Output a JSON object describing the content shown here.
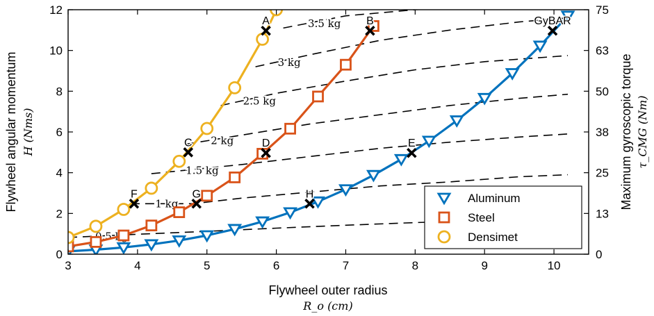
{
  "chart_data": {
    "type": "line",
    "xlabel": "Flywheel outer radius",
    "xlabel_symbol": "R_o (cm)",
    "ylabel": "Flywheel angular momentum",
    "ylabel_symbol": "H (Nms)",
    "y2label": "Maximum gyroscopic torque",
    "y2label_symbol": "τ_CMG (Nm)",
    "xlim": [
      3,
      10.5
    ],
    "ylim": [
      0,
      12
    ],
    "x_ticks": [
      "3",
      "4",
      "5",
      "6",
      "7",
      "8",
      "9",
      "10"
    ],
    "y_ticks": [
      "0",
      "2",
      "4",
      "6",
      "8",
      "10",
      "12"
    ],
    "y2_ticks": [
      "0",
      "13",
      "25",
      "38",
      "50",
      "63",
      "75"
    ],
    "grid": false,
    "legend_position": "bottom-right",
    "series": [
      {
        "name": "Aluminum",
        "color": "#0072BD",
        "marker": "triangle-down",
        "x": [
          3.0,
          3.4,
          3.8,
          4.2,
          4.6,
          5.0,
          5.4,
          5.8,
          6.2,
          6.6,
          7.0,
          7.4,
          7.8,
          8.2,
          8.6,
          9.0,
          9.4,
          9.8,
          10.2
        ],
        "y": [
          0.14,
          0.22,
          0.33,
          0.48,
          0.67,
          0.92,
          1.23,
          1.6,
          2.05,
          2.58,
          3.18,
          3.88,
          4.66,
          5.56,
          6.56,
          7.66,
          8.88,
          10.23,
          11.7
        ]
      },
      {
        "name": "Steel",
        "color": "#D95319",
        "marker": "square",
        "x": [
          3.0,
          3.4,
          3.8,
          4.2,
          4.6,
          5.0,
          5.4,
          5.8,
          6.2,
          6.6,
          7.0,
          7.4
        ],
        "y": [
          0.38,
          0.6,
          0.92,
          1.41,
          2.06,
          2.87,
          3.77,
          4.93,
          6.16,
          7.74,
          9.3,
          11.2
        ]
      },
      {
        "name": "Densimet",
        "color": "#EDB120",
        "marker": "circle",
        "x": [
          3.0,
          3.4,
          3.8,
          4.2,
          4.6,
          5.0,
          5.4,
          5.8,
          6.0
        ],
        "y": [
          0.82,
          1.37,
          2.2,
          3.24,
          4.56,
          6.17,
          8.17,
          10.55,
          12.0
        ]
      }
    ],
    "mass_contours": [
      {
        "label": "0.5 kg",
        "x": [
          3.0,
          4.0,
          5.0,
          6.0,
          7.0,
          8.0,
          9.0,
          10.0
        ],
        "y": [
          0.82,
          0.98,
          1.12,
          1.28,
          1.42,
          1.55,
          1.65,
          1.72
        ]
      },
      {
        "label": "1 kg",
        "x": [
          3.9,
          4.8,
          5.5,
          6.5,
          7.5,
          8.5,
          9.5,
          10.2
        ],
        "y": [
          2.48,
          2.48,
          2.75,
          3.05,
          3.35,
          3.55,
          3.8,
          3.9
        ]
      },
      {
        "label": "1.5 kg",
        "x": [
          4.2,
          5.5,
          6.5,
          7.5,
          8.5,
          9.5,
          10.2
        ],
        "y": [
          3.95,
          4.4,
          4.8,
          5.2,
          5.5,
          5.75,
          5.9
        ]
      },
      {
        "label": "2 kg",
        "x": [
          4.7,
          5.6,
          6.5,
          7.5,
          8.5,
          9.5,
          10.2
        ],
        "y": [
          5.4,
          5.9,
          6.4,
          6.85,
          7.3,
          7.65,
          7.85
        ]
      },
      {
        "label": "2.5 kg",
        "x": [
          5.2,
          6.0,
          7.0,
          8.0,
          9.0,
          10.0,
          10.2
        ],
        "y": [
          7.3,
          7.9,
          8.5,
          9.05,
          9.45,
          9.7,
          9.75
        ]
      },
      {
        "label": "3 kg",
        "x": [
          5.7,
          6.5,
          7.5,
          8.5,
          9.5,
          10.2
        ],
        "y": [
          9.2,
          9.8,
          10.5,
          11.0,
          11.4,
          11.6
        ]
      },
      {
        "label": "3.5 kg",
        "x": [
          6.1,
          7.0,
          8.0,
          9.0,
          10.0,
          10.3
        ],
        "y": [
          11.1,
          11.7,
          12.0,
          12.2,
          12.3,
          12.35
        ]
      }
    ],
    "design_points": [
      {
        "label": "A",
        "x": 5.85,
        "y": 10.97
      },
      {
        "label": "B",
        "x": 7.35,
        "y": 10.97
      },
      {
        "label": "C",
        "x": 4.73,
        "y": 5.0
      },
      {
        "label": "D",
        "x": 5.85,
        "y": 4.97
      },
      {
        "label": "E",
        "x": 7.95,
        "y": 4.97
      },
      {
        "label": "F",
        "x": 3.95,
        "y": 2.48
      },
      {
        "label": "G",
        "x": 4.85,
        "y": 2.48
      },
      {
        "label": "H",
        "x": 6.48,
        "y": 2.48
      },
      {
        "label": "GyBAR",
        "x": 9.98,
        "y": 10.97
      }
    ]
  }
}
